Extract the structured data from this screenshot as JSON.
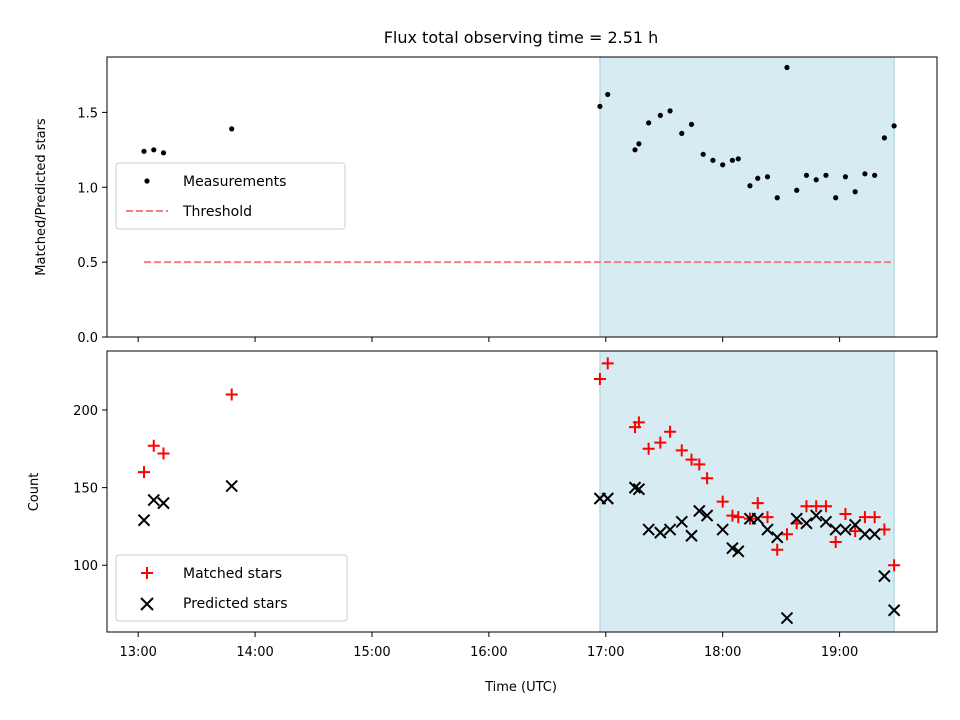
{
  "chart_data": [
    {
      "type": "scatter",
      "title": "Flux total observing time = 2.51 h",
      "ylabel": "Matched/Predicted stars",
      "xlabel": "",
      "xlim": [
        "12:44",
        "19:50"
      ],
      "ylim": [
        0,
        1.87
      ],
      "yticks": [
        0.0,
        0.5,
        1.0,
        1.5
      ],
      "ytick_labels": [
        "0.0",
        "0.5",
        "1.0",
        "1.5"
      ],
      "highlight_span": [
        "16:57",
        "19:28"
      ],
      "highlight_color": "#add8e6",
      "legend_position": "center-left",
      "series": [
        {
          "name": "Measurements",
          "marker": "dot",
          "color": "#000000",
          "x": [
            "13:03",
            "13:08",
            "13:13",
            "13:48",
            "16:57",
            "17:01",
            "17:15",
            "17:17",
            "17:22",
            "17:28",
            "17:33",
            "17:39",
            "17:44",
            "17:50",
            "17:55",
            "18:00",
            "18:05",
            "18:08",
            "18:14",
            "18:18",
            "18:23",
            "18:28",
            "18:33",
            "18:38",
            "18:43",
            "18:48",
            "18:53",
            "18:58",
            "19:03",
            "19:08",
            "19:13",
            "19:18",
            "19:23",
            "19:28"
          ],
          "y": [
            1.24,
            1.25,
            1.23,
            1.39,
            1.54,
            1.62,
            1.25,
            1.29,
            1.43,
            1.48,
            1.51,
            1.36,
            1.42,
            1.22,
            1.18,
            1.15,
            1.18,
            1.19,
            1.01,
            1.06,
            1.07,
            0.93,
            1.8,
            0.98,
            1.08,
            1.05,
            1.08,
            0.93,
            1.07,
            0.97,
            1.09,
            1.08,
            1.33,
            1.41
          ]
        },
        {
          "name": "Threshold",
          "marker": "dashed-line",
          "color": "#f08080",
          "x": [
            "13:03",
            "19:28"
          ],
          "y": [
            0.5,
            0.5
          ]
        }
      ]
    },
    {
      "type": "scatter",
      "title": "",
      "ylabel": "Count",
      "xlabel": "Time (UTC)",
      "xlim": [
        "12:44",
        "19:50"
      ],
      "ylim": [
        57,
        238
      ],
      "xticks": [
        "13:00",
        "14:00",
        "15:00",
        "16:00",
        "17:00",
        "18:00",
        "19:00"
      ],
      "yticks": [
        100,
        150,
        200
      ],
      "ytick_labels": [
        "100",
        "150",
        "200"
      ],
      "highlight_span": [
        "16:57",
        "19:28"
      ],
      "highlight_color": "#add8e6",
      "legend_position": "lower-left",
      "series": [
        {
          "name": "Matched stars",
          "marker": "plus",
          "color": "#ff0000",
          "x": [
            "13:03",
            "13:08",
            "13:13",
            "13:48",
            "16:57",
            "17:01",
            "17:15",
            "17:17",
            "17:22",
            "17:28",
            "17:33",
            "17:39",
            "17:44",
            "17:48",
            "17:52",
            "18:00",
            "18:05",
            "18:08",
            "18:14",
            "18:18",
            "18:23",
            "18:28",
            "18:33",
            "18:38",
            "18:43",
            "18:48",
            "18:53",
            "18:58",
            "19:03",
            "19:08",
            "19:13",
            "19:18",
            "19:23",
            "19:28"
          ],
          "y": [
            160,
            177,
            172,
            210,
            220,
            230,
            189,
            192,
            175,
            179,
            186,
            174,
            168,
            165,
            156,
            141,
            132,
            131,
            130,
            140,
            131,
            110,
            120,
            127,
            138,
            138,
            138,
            115,
            133,
            122,
            131,
            131,
            123,
            100
          ]
        },
        {
          "name": "Predicted stars",
          "marker": "x",
          "color": "#000000",
          "x": [
            "13:03",
            "13:08",
            "13:13",
            "13:48",
            "16:57",
            "17:01",
            "17:15",
            "17:17",
            "17:22",
            "17:28",
            "17:33",
            "17:39",
            "17:44",
            "17:48",
            "17:52",
            "18:00",
            "18:05",
            "18:08",
            "18:14",
            "18:18",
            "18:23",
            "18:28",
            "18:33",
            "18:38",
            "18:43",
            "18:48",
            "18:53",
            "18:58",
            "19:03",
            "19:08",
            "19:13",
            "19:18",
            "19:23",
            "19:28"
          ],
          "y": [
            129,
            142,
            140,
            151,
            143,
            143,
            150,
            149,
            123,
            121,
            123,
            128,
            119,
            135,
            132,
            123,
            111,
            109,
            130,
            130,
            123,
            118,
            66,
            130,
            127,
            132,
            128,
            123,
            123,
            126,
            120,
            120,
            93,
            71
          ]
        }
      ]
    }
  ]
}
